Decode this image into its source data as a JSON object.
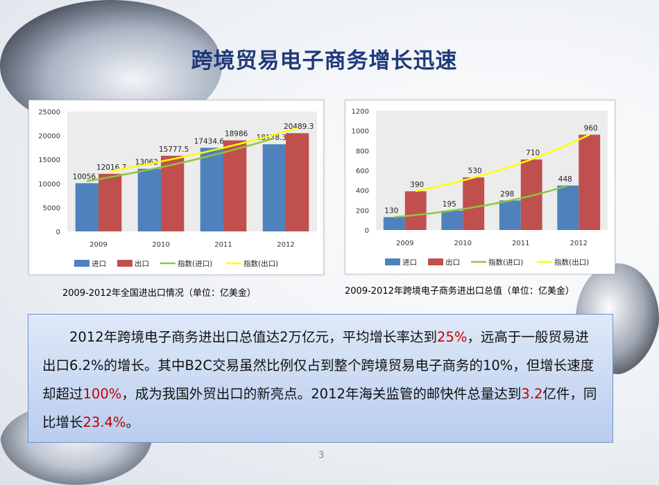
{
  "title": "跨境贸易电子商务增长迅速",
  "captions": [
    "2009-2012年全国进出口情况（单位：亿美金）",
    "2009-2012年跨境电子商务进出口总值（单位：亿美金）"
  ],
  "paragraph": [
    {
      "text": "2012年跨境电子商务进出口总值达2万亿元，平均增长率达到",
      "highlight": false
    },
    {
      "text": "25%",
      "highlight": true
    },
    {
      "text": "，远高于一般贸易进出口6.2%的增长。其中B2C交易虽然比例仅占到整个跨境贸易电子商务的10%，但增长速度却超过",
      "highlight": false
    },
    {
      "text": "100%",
      "highlight": true
    },
    {
      "text": "，成为我国外贸出口的新亮点。2012年海关监管的邮快件总量达到",
      "highlight": false
    },
    {
      "text": "3.2",
      "highlight": true
    },
    {
      "text": "亿件，同比增长",
      "highlight": false
    },
    {
      "text": "23.4%",
      "highlight": true
    },
    {
      "text": "。",
      "highlight": false
    }
  ],
  "page_number": "3",
  "colors": {
    "import": "#4f81bd",
    "export": "#c0504d",
    "trend_import": "#8dc63f",
    "trend_export": "#ffff00",
    "highlight": "#c00000",
    "title": "#1f3a7a"
  },
  "chart_data": [
    {
      "type": "bar",
      "categories": [
        "2009",
        "2010",
        "2011",
        "2012"
      ],
      "series": [
        {
          "name": "进口",
          "values": [
            10056,
            13062,
            17434.6,
            18178.3
          ],
          "labels": [
            "10056",
            "13062",
            "17434.6",
            "18178.3"
          ]
        },
        {
          "name": "出口",
          "values": [
            12016.7,
            15777.5,
            18986,
            20489.3
          ],
          "labels": [
            "12016.7",
            "15777.5",
            "18986",
            "20489.3"
          ]
        }
      ],
      "trendlines": [
        {
          "name": "指数(进口)",
          "of": "进口"
        },
        {
          "name": "指数(出口)",
          "of": "出口"
        }
      ],
      "ylim": [
        0,
        25000
      ],
      "yticks": [
        "0",
        "5000",
        "10000",
        "15000",
        "20000",
        "25000"
      ],
      "legend": "bottom",
      "grid": false
    },
    {
      "type": "bar",
      "categories": [
        "2009",
        "2010",
        "2011",
        "2012"
      ],
      "series": [
        {
          "name": "进口",
          "values": [
            130,
            195,
            298,
            448
          ],
          "labels": [
            "130",
            "195",
            "298",
            "448"
          ]
        },
        {
          "name": "出口",
          "values": [
            390,
            530,
            710,
            960
          ],
          "labels": [
            "390",
            "530",
            "710",
            "960"
          ]
        }
      ],
      "trendlines": [
        {
          "name": "指数(进口)",
          "of": "进口"
        },
        {
          "name": "指数(出口)",
          "of": "出口"
        }
      ],
      "ylim": [
        0,
        1200
      ],
      "yticks": [
        "0",
        "200",
        "400",
        "600",
        "800",
        "1000",
        "1200"
      ],
      "legend": "bottom",
      "grid": false
    }
  ]
}
